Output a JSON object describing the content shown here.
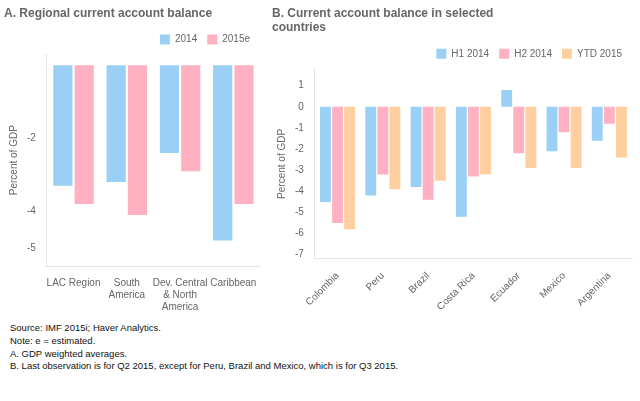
{
  "chart_data": [
    {
      "type": "bar",
      "title": "A. Regional current account balance",
      "ylabel": "Percent of GDP",
      "categories": [
        "LAC Region",
        "South\nAmerica",
        "Dev. Central\n& North\nAmerica",
        "Caribbean"
      ],
      "series": [
        {
          "name": "2014",
          "values": [
            -3.3,
            -3.2,
            -2.4,
            -4.8
          ]
        },
        {
          "name": "2015e",
          "values": [
            -3.8,
            -4.1,
            -2.9,
            -3.8
          ]
        }
      ],
      "ylim": [
        -5.5,
        0.3
      ],
      "yticks": [
        -5,
        -4,
        -2
      ],
      "legend": "upper right",
      "grid": false
    },
    {
      "type": "bar",
      "title": "B. Current account balance in selected\ncountries",
      "ylabel": "Percent of GDP",
      "categories": [
        "Colombia",
        "Peru",
        "Brazil",
        "Costa Rica",
        "Ecuador",
        "Mexico",
        "Argentina"
      ],
      "series": [
        {
          "name": "H1 2014",
          "values": [
            -4.5,
            -4.2,
            -3.8,
            -5.2,
            0.8,
            -2.1,
            -1.6
          ]
        },
        {
          "name": "H2 2014",
          "values": [
            -5.5,
            -3.2,
            -4.4,
            -3.3,
            -2.2,
            -1.2,
            -0.8
          ]
        },
        {
          "name": "YTD 2015",
          "values": [
            -5.8,
            -3.9,
            -3.5,
            -3.2,
            -2.9,
            -2.9,
            -2.4
          ]
        }
      ],
      "ylim": [
        -7.2,
        1.8
      ],
      "yticks": [
        1,
        0,
        -1,
        -2,
        -3,
        -4,
        -5,
        -6,
        -7
      ],
      "legend": "upper right",
      "grid": false
    }
  ],
  "footnote": "Source: IMF 2015i; Haver Analytics.\nNote: e = estimated.\nA. GDP weighted averages.\nB. Last observation is for Q2 2015, except for Peru, Brazil and Mexico, which is for Q3 2015."
}
